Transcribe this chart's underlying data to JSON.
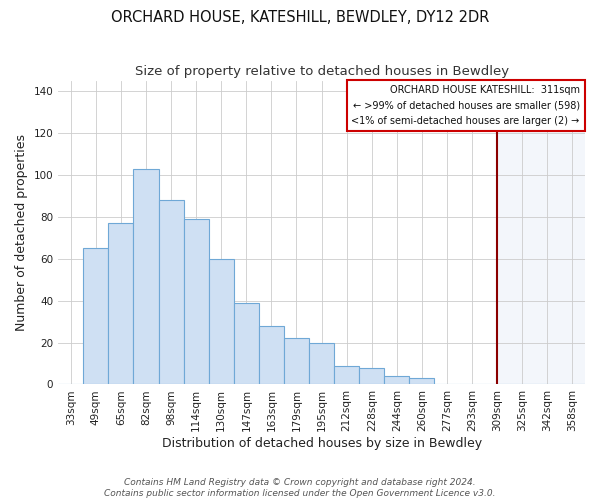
{
  "title": "ORCHARD HOUSE, KATESHILL, BEWDLEY, DY12 2DR",
  "subtitle": "Size of property relative to detached houses in Bewdley",
  "xlabel": "Distribution of detached houses by size in Bewdley",
  "ylabel": "Number of detached properties",
  "bar_labels": [
    "33sqm",
    "49sqm",
    "65sqm",
    "82sqm",
    "98sqm",
    "114sqm",
    "130sqm",
    "147sqm",
    "163sqm",
    "179sqm",
    "195sqm",
    "212sqm",
    "228sqm",
    "244sqm",
    "260sqm",
    "277sqm",
    "293sqm",
    "309sqm",
    "325sqm",
    "342sqm",
    "358sqm"
  ],
  "bar_values": [
    0,
    65,
    77,
    103,
    88,
    79,
    60,
    39,
    28,
    22,
    20,
    9,
    8,
    4,
    3,
    0,
    0,
    0,
    0,
    0,
    0
  ],
  "bar_color": "#cfe0f3",
  "bar_edge_color": "#6fa8d6",
  "highlight_color": "#ddeeff",
  "vline_x_index": 17,
  "vline_color": "#8b0000",
  "legend_title": "ORCHARD HOUSE KATESHILL:  311sqm",
  "legend_line1": "← >99% of detached houses are smaller (598)",
  "legend_line2": "<1% of semi-detached houses are larger (2) →",
  "ylim": [
    0,
    145
  ],
  "yticks": [
    0,
    20,
    40,
    60,
    80,
    100,
    120,
    140
  ],
  "footer1": "Contains HM Land Registry data © Crown copyright and database right 2024.",
  "footer2": "Contains public sector information licensed under the Open Government Licence v3.0.",
  "title_fontsize": 10.5,
  "subtitle_fontsize": 9.5,
  "label_fontsize": 9,
  "tick_fontsize": 7.5,
  "footer_fontsize": 6.5
}
